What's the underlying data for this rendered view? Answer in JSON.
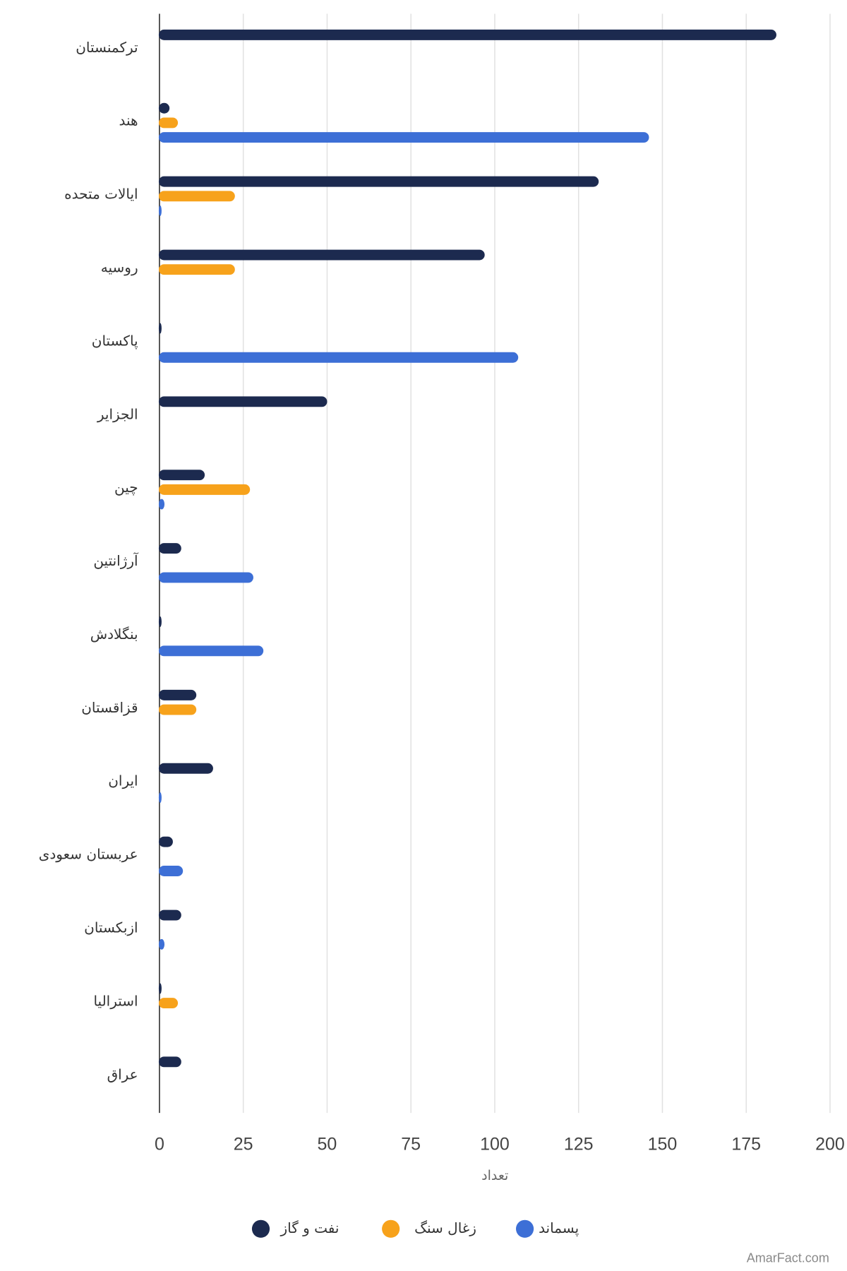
{
  "chart_data": {
    "type": "bar",
    "orientation": "horizontal",
    "categories": [
      "ترکمنستان",
      "هند",
      "ایالات متحده",
      "روسیه",
      "پاکستان",
      "الجزایر",
      "چین",
      "آرژانتین",
      "بنگلادش",
      "قزاقستان",
      "ایران",
      "عربستان سعودی",
      "ازبکستان",
      "استرالیا",
      "عراق"
    ],
    "series": [
      {
        "name": "نفت و گاز",
        "color": "#1c2a4f",
        "values": [
          184,
          3,
          131,
          97,
          0.5,
          50,
          13.5,
          6.5,
          0.5,
          11,
          16,
          4,
          6.5,
          0.5,
          6.5
        ]
      },
      {
        "name": "زغال سنگ",
        "color": "#f7a21b",
        "values": [
          0,
          5.5,
          22.5,
          22.5,
          0,
          0,
          27,
          0,
          0,
          11,
          0,
          0,
          0,
          5.5,
          0
        ]
      },
      {
        "name": "پسماند",
        "color": "#3d6fd6",
        "values": [
          0,
          146,
          0.5,
          0,
          107,
          0,
          1.5,
          28,
          31,
          0,
          0.5,
          7,
          1.5,
          0,
          0
        ]
      }
    ],
    "xlim": [
      0,
      200
    ],
    "xticks": [
      "0",
      "25",
      "50",
      "75",
      "100",
      "125",
      "150",
      "175",
      "200"
    ],
    "xlabel": "تعداد",
    "ylabel": "",
    "title": "",
    "grid": true,
    "legend_position": "bottom-center"
  },
  "watermark": "AmarFact.com"
}
